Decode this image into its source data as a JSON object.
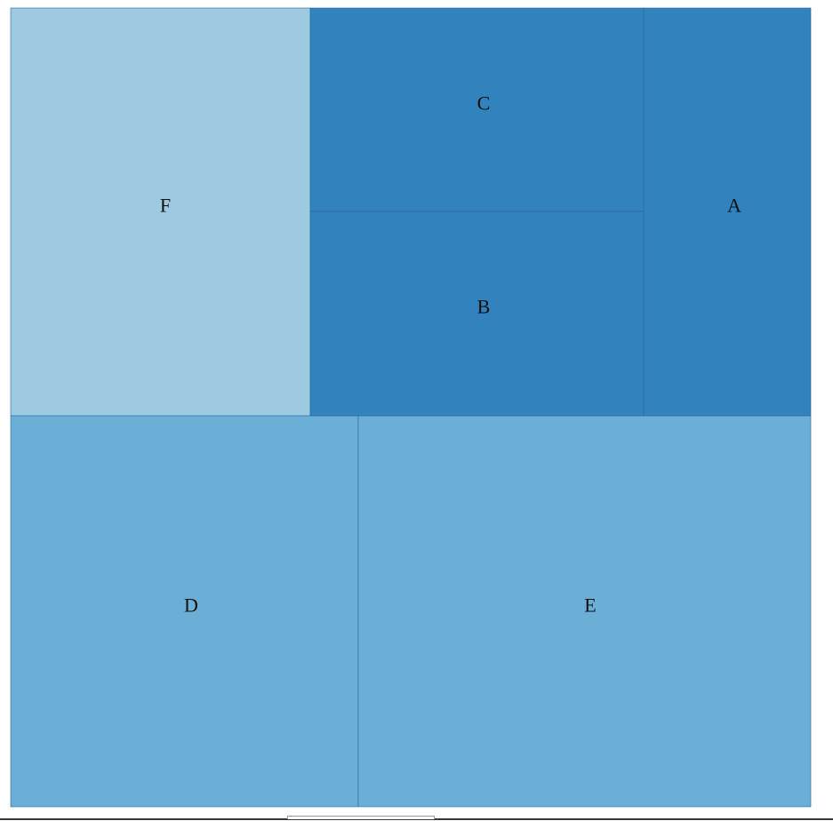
{
  "chart_data": {
    "type": "treemap",
    "title": "",
    "colors": {
      "dark": "#3182bd",
      "mid": "#6baed6",
      "light": "#9ecae1",
      "border": "#2a6a97"
    },
    "items": [
      {
        "label": "F",
        "value": 15,
        "color": "#9ecae1"
      },
      {
        "label": "C",
        "value": 8.5,
        "color": "#3182bd"
      },
      {
        "label": "B",
        "value": 8.5,
        "color": "#3182bd"
      },
      {
        "label": "A",
        "value": 8.5,
        "color": "#3182bd"
      },
      {
        "label": "D",
        "value": 17,
        "color": "#6baed6"
      },
      {
        "label": "E",
        "value": 22,
        "color": "#6baed6"
      }
    ]
  }
}
